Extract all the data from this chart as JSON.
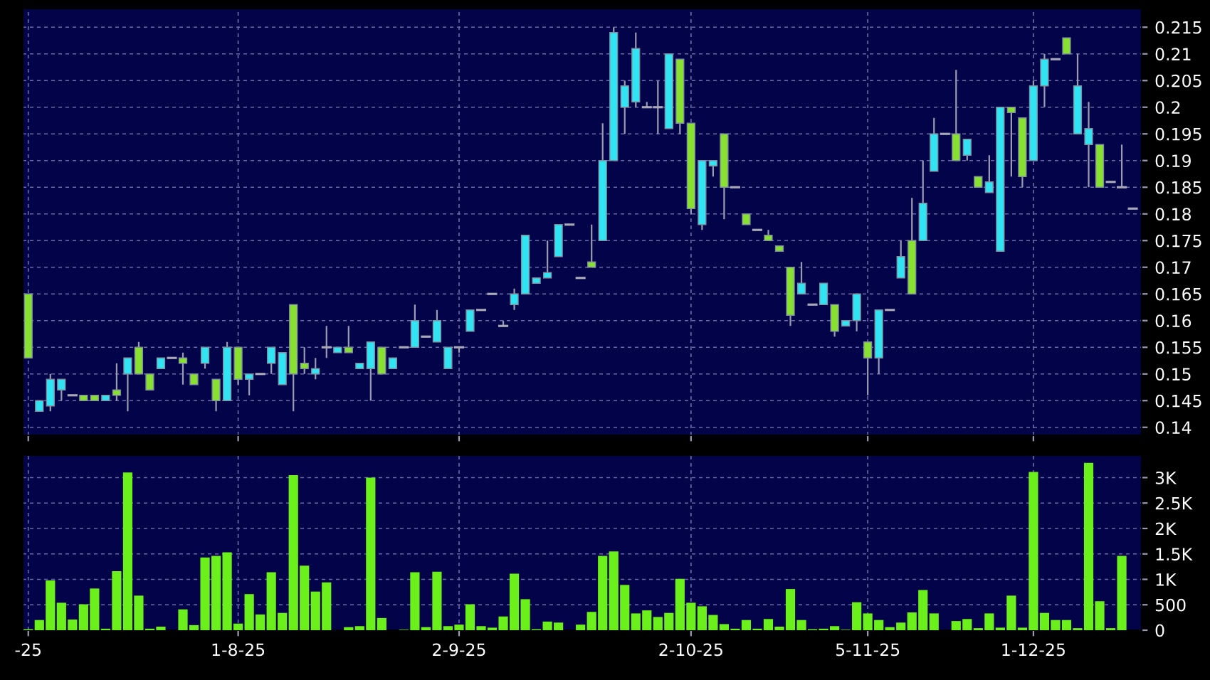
{
  "chart_data": [
    {
      "type": "candlestick",
      "grid": true,
      "categories": [
        null,
        null,
        null,
        null,
        null,
        null,
        null,
        null,
        null,
        null,
        null,
        null,
        null,
        null,
        null,
        null,
        null,
        null,
        null,
        null,
        null,
        null,
        null,
        null,
        null,
        null,
        null,
        null,
        null,
        null,
        null,
        null,
        null,
        null,
        null,
        null,
        null,
        null,
        null,
        null,
        null,
        null,
        null,
        null,
        null,
        null,
        null,
        null,
        null,
        null,
        null,
        null,
        null,
        null,
        null,
        null,
        null,
        null,
        null,
        null,
        null,
        null,
        null,
        null,
        null,
        null,
        null,
        null,
        null,
        null,
        null,
        null,
        null,
        null,
        null,
        null,
        null,
        null,
        null,
        null,
        null,
        null,
        null,
        null,
        null,
        null,
        null,
        null,
        null,
        null,
        null,
        null,
        null,
        null,
        null,
        null,
        null,
        null,
        null,
        null,
        null
      ],
      "ohlc": [
        [
          0.165,
          0.165,
          0.153,
          0.153
        ],
        [
          0.143,
          0.145,
          0.143,
          0.145
        ],
        [
          0.144,
          0.15,
          0.143,
          0.149
        ],
        [
          0.147,
          0.149,
          0.145,
          0.149
        ],
        [
          0.146,
          0.146,
          0.146,
          0.146
        ],
        [
          0.146,
          0.146,
          0.145,
          0.145
        ],
        [
          0.146,
          0.146,
          0.145,
          0.145
        ],
        [
          0.145,
          0.146,
          0.145,
          0.146
        ],
        [
          0.147,
          0.152,
          0.145,
          0.146
        ],
        [
          0.15,
          0.153,
          0.143,
          0.153
        ],
        [
          0.155,
          0.156,
          0.15,
          0.15
        ],
        [
          0.15,
          0.15,
          0.147,
          0.147
        ],
        [
          0.151,
          0.153,
          0.151,
          0.153
        ],
        [
          0.153,
          0.153,
          0.153,
          0.153
        ],
        [
          0.153,
          0.154,
          0.148,
          0.152
        ],
        [
          0.15,
          0.15,
          0.148,
          0.148
        ],
        [
          0.152,
          0.155,
          0.151,
          0.155
        ],
        [
          0.149,
          0.149,
          0.143,
          0.145
        ],
        [
          0.145,
          0.156,
          0.145,
          0.155
        ],
        [
          0.155,
          0.155,
          0.148,
          0.149
        ],
        [
          0.149,
          0.15,
          0.146,
          0.15
        ],
        [
          0.15,
          0.15,
          0.15,
          0.15
        ],
        [
          0.152,
          0.155,
          0.15,
          0.155
        ],
        [
          0.148,
          0.154,
          0.148,
          0.154
        ],
        [
          0.163,
          0.163,
          0.143,
          0.15
        ],
        [
          0.152,
          0.155,
          0.15,
          0.151
        ],
        [
          0.15,
          0.153,
          0.149,
          0.151
        ],
        [
          0.155,
          0.159,
          0.153,
          0.155
        ],
        [
          0.154,
          0.155,
          0.154,
          0.155
        ],
        [
          0.155,
          0.159,
          0.154,
          0.154
        ],
        [
          0.151,
          0.152,
          0.151,
          0.152
        ],
        [
          0.151,
          0.156,
          0.145,
          0.156
        ],
        [
          0.155,
          0.155,
          0.15,
          0.15
        ],
        [
          0.151,
          0.153,
          0.151,
          0.153
        ],
        [
          0.155,
          0.155,
          0.155,
          0.155
        ],
        [
          0.155,
          0.163,
          0.155,
          0.16
        ],
        [
          0.157,
          0.157,
          0.157,
          0.157
        ],
        [
          0.156,
          0.162,
          0.156,
          0.16
        ],
        [
          0.151,
          0.155,
          0.151,
          0.155
        ],
        [
          0.155,
          0.155,
          0.154,
          0.155
        ],
        [
          0.158,
          0.162,
          0.158,
          0.162
        ],
        [
          0.162,
          0.162,
          0.162,
          0.162
        ],
        [
          0.165,
          0.165,
          0.165,
          0.165
        ],
        [
          0.159,
          0.16,
          0.159,
          0.159
        ],
        [
          0.163,
          0.166,
          0.162,
          0.165
        ],
        [
          0.165,
          0.176,
          0.165,
          0.176
        ],
        [
          0.167,
          0.168,
          0.167,
          0.168
        ],
        [
          0.168,
          0.175,
          0.168,
          0.169
        ],
        [
          0.172,
          0.178,
          0.172,
          0.178
        ],
        [
          0.178,
          0.178,
          0.178,
          0.178
        ],
        [
          0.168,
          0.168,
          0.168,
          0.168
        ],
        [
          0.171,
          0.178,
          0.17,
          0.17
        ],
        [
          0.175,
          0.197,
          0.175,
          0.19
        ],
        [
          0.19,
          0.215,
          0.19,
          0.214
        ],
        [
          0.2,
          0.205,
          0.195,
          0.204
        ],
        [
          0.201,
          0.214,
          0.2,
          0.211
        ],
        [
          0.2,
          0.201,
          0.2,
          0.2
        ],
        [
          0.2,
          0.205,
          0.195,
          0.2
        ],
        [
          0.196,
          0.21,
          0.196,
          0.21
        ],
        [
          0.209,
          0.209,
          0.195,
          0.197
        ],
        [
          0.197,
          0.197,
          0.18,
          0.181
        ],
        [
          0.178,
          0.19,
          0.177,
          0.19
        ],
        [
          0.189,
          0.19,
          0.187,
          0.19
        ],
        [
          0.195,
          0.195,
          0.179,
          0.185
        ],
        [
          0.185,
          0.185,
          0.185,
          0.185
        ],
        [
          0.18,
          0.18,
          0.178,
          0.178
        ],
        [
          0.177,
          0.177,
          0.177,
          0.177
        ],
        [
          0.176,
          0.177,
          0.175,
          0.175
        ],
        [
          0.174,
          0.174,
          0.173,
          0.173
        ],
        [
          0.17,
          0.17,
          0.159,
          0.161
        ],
        [
          0.165,
          0.171,
          0.165,
          0.167
        ],
        [
          0.163,
          0.163,
          0.163,
          0.163
        ],
        [
          0.163,
          0.167,
          0.163,
          0.167
        ],
        [
          0.163,
          0.163,
          0.157,
          0.158
        ],
        [
          0.159,
          0.16,
          0.159,
          0.16
        ],
        [
          0.16,
          0.165,
          0.158,
          0.165
        ],
        [
          0.156,
          0.156,
          0.146,
          0.153
        ],
        [
          0.153,
          0.162,
          0.15,
          0.162
        ],
        [
          0.162,
          0.162,
          0.162,
          0.162
        ],
        [
          0.168,
          0.175,
          0.168,
          0.172
        ],
        [
          0.175,
          0.183,
          0.165,
          0.165
        ],
        [
          0.175,
          0.19,
          0.175,
          0.182
        ],
        [
          0.188,
          0.198,
          0.188,
          0.195
        ],
        [
          0.195,
          0.195,
          0.195,
          0.195
        ],
        [
          0.195,
          0.207,
          0.19,
          0.19
        ],
        [
          0.191,
          0.194,
          0.19,
          0.194
        ],
        [
          0.187,
          0.187,
          0.185,
          0.185
        ],
        [
          0.184,
          0.191,
          0.184,
          0.186
        ],
        [
          0.173,
          0.2,
          0.173,
          0.2
        ],
        [
          0.2,
          0.2,
          0.187,
          0.199
        ],
        [
          0.198,
          0.198,
          0.185,
          0.187
        ],
        [
          0.19,
          0.205,
          0.19,
          0.204
        ],
        [
          0.204,
          0.21,
          0.2,
          0.209
        ],
        [
          0.209,
          0.209,
          0.209,
          0.209
        ],
        [
          0.213,
          0.213,
          0.21,
          0.21
        ],
        [
          0.195,
          0.21,
          0.195,
          0.204
        ],
        [
          0.193,
          0.201,
          0.185,
          0.196
        ],
        [
          0.193,
          0.193,
          0.185,
          0.185
        ],
        [
          0.186,
          0.186,
          0.186,
          0.186
        ],
        [
          0.185,
          0.193,
          0.185,
          0.185
        ],
        [
          0.181,
          0.181,
          0.181,
          0.181
        ]
      ],
      "colors": [
        "#88e030",
        "#30e4f4",
        "#30e4f4",
        "#30e4f4",
        "#a8a8b8",
        "#88e030",
        "#88e030",
        "#30e4f4",
        "#88e030",
        "#30e4f4",
        "#88e030",
        "#88e030",
        "#30e4f4",
        "#a8a8b8",
        "#88e030",
        "#88e030",
        "#30e4f4",
        "#88e030",
        "#30e4f4",
        "#88e030",
        "#30e4f4",
        "#a8a8b8",
        "#30e4f4",
        "#30e4f4",
        "#88e030",
        "#88e030",
        "#30e4f4",
        "#a8a8b8",
        "#30e4f4",
        "#88e030",
        "#30e4f4",
        "#30e4f4",
        "#88e030",
        "#30e4f4",
        "#a8a8b8",
        "#30e4f4",
        "#a8a8b8",
        "#30e4f4",
        "#30e4f4",
        "#a8a8b8",
        "#30e4f4",
        "#a8a8b8",
        "#a8a8b8",
        "#a8a8b8",
        "#30e4f4",
        "#30e4f4",
        "#30e4f4",
        "#30e4f4",
        "#30e4f4",
        "#a8a8b8",
        "#a8a8b8",
        "#88e030",
        "#30e4f4",
        "#30e4f4",
        "#30e4f4",
        "#30e4f4",
        "#a8a8b8",
        "#a8a8b8",
        "#30e4f4",
        "#88e030",
        "#88e030",
        "#30e4f4",
        "#30e4f4",
        "#88e030",
        "#a8a8b8",
        "#88e030",
        "#a8a8b8",
        "#88e030",
        "#88e030",
        "#88e030",
        "#30e4f4",
        "#a8a8b8",
        "#30e4f4",
        "#88e030",
        "#30e4f4",
        "#30e4f4",
        "#88e030",
        "#30e4f4",
        "#a8a8b8",
        "#30e4f4",
        "#88e030",
        "#30e4f4",
        "#30e4f4",
        "#a8a8b8",
        "#88e030",
        "#30e4f4",
        "#88e030",
        "#30e4f4",
        "#30e4f4",
        "#88e030",
        "#88e030",
        "#30e4f4",
        "#30e4f4",
        "#a8a8b8",
        "#88e030",
        "#30e4f4",
        "#30e4f4",
        "#88e030",
        "#a8a8b8",
        "#a8a8b8",
        "#a8a8b8"
      ],
      "ylim": [
        0.1385,
        0.2185
      ],
      "yticks": [
        0.14,
        0.145,
        0.15,
        0.155,
        0.16,
        0.165,
        0.17,
        0.175,
        0.18,
        0.185,
        0.19,
        0.195,
        0.2,
        0.205,
        0.21,
        0.215
      ]
    },
    {
      "type": "bar",
      "grid": true,
      "color": "#6cf01c",
      "categories": [
        "-25",
        null,
        null,
        null,
        null,
        null,
        null,
        null,
        null,
        null,
        null,
        null,
        null,
        null,
        null,
        null,
        null,
        null,
        null,
        "1-8-25",
        null,
        null,
        null,
        null,
        null,
        null,
        null,
        null,
        null,
        null,
        null,
        null,
        null,
        null,
        null,
        null,
        null,
        null,
        null,
        "2-9-25",
        null,
        null,
        null,
        null,
        null,
        null,
        null,
        null,
        null,
        null,
        null,
        null,
        null,
        null,
        null,
        null,
        null,
        null,
        null,
        null,
        "2-10-25",
        null,
        null,
        null,
        null,
        null,
        null,
        null,
        null,
        null,
        null,
        null,
        null,
        null,
        null,
        null,
        "5-11-25",
        null,
        null,
        null,
        null,
        null,
        null,
        null,
        null,
        null,
        null,
        null,
        null,
        null,
        null,
        "1-12-25",
        null,
        null,
        null,
        null,
        null,
        null,
        null,
        null,
        null
      ],
      "values": [
        20,
        200,
        980,
        540,
        210,
        510,
        820,
        30,
        1160,
        3100,
        680,
        30,
        70,
        0,
        410,
        100,
        1430,
        1460,
        1530,
        130,
        710,
        310,
        1140,
        340,
        3050,
        1270,
        760,
        940,
        0,
        60,
        80,
        3000,
        240,
        0,
        10,
        1140,
        60,
        1150,
        80,
        110,
        510,
        80,
        50,
        270,
        1110,
        610,
        20,
        170,
        150,
        0,
        110,
        360,
        1460,
        1550,
        890,
        330,
        390,
        260,
        340,
        1010,
        540,
        470,
        300,
        120,
        30,
        200,
        30,
        220,
        70,
        810,
        200,
        20,
        30,
        80,
        10,
        550,
        330,
        200,
        60,
        150,
        350,
        790,
        330,
        0,
        180,
        220,
        40,
        330,
        50,
        680,
        50,
        3110,
        340,
        200,
        200,
        40,
        3290,
        570,
        40,
        1460,
        0
      ],
      "ylim": [
        0,
        3440
      ],
      "yticks": [
        0,
        500,
        {
          "value": 1000,
          "label": "1K"
        },
        {
          "value": 1500,
          "label": "1.5K"
        },
        {
          "value": 2000,
          "label": "2K"
        },
        {
          "value": 2500,
          "label": "2.5K"
        },
        {
          "value": 3000,
          "label": "3K"
        }
      ]
    }
  ]
}
